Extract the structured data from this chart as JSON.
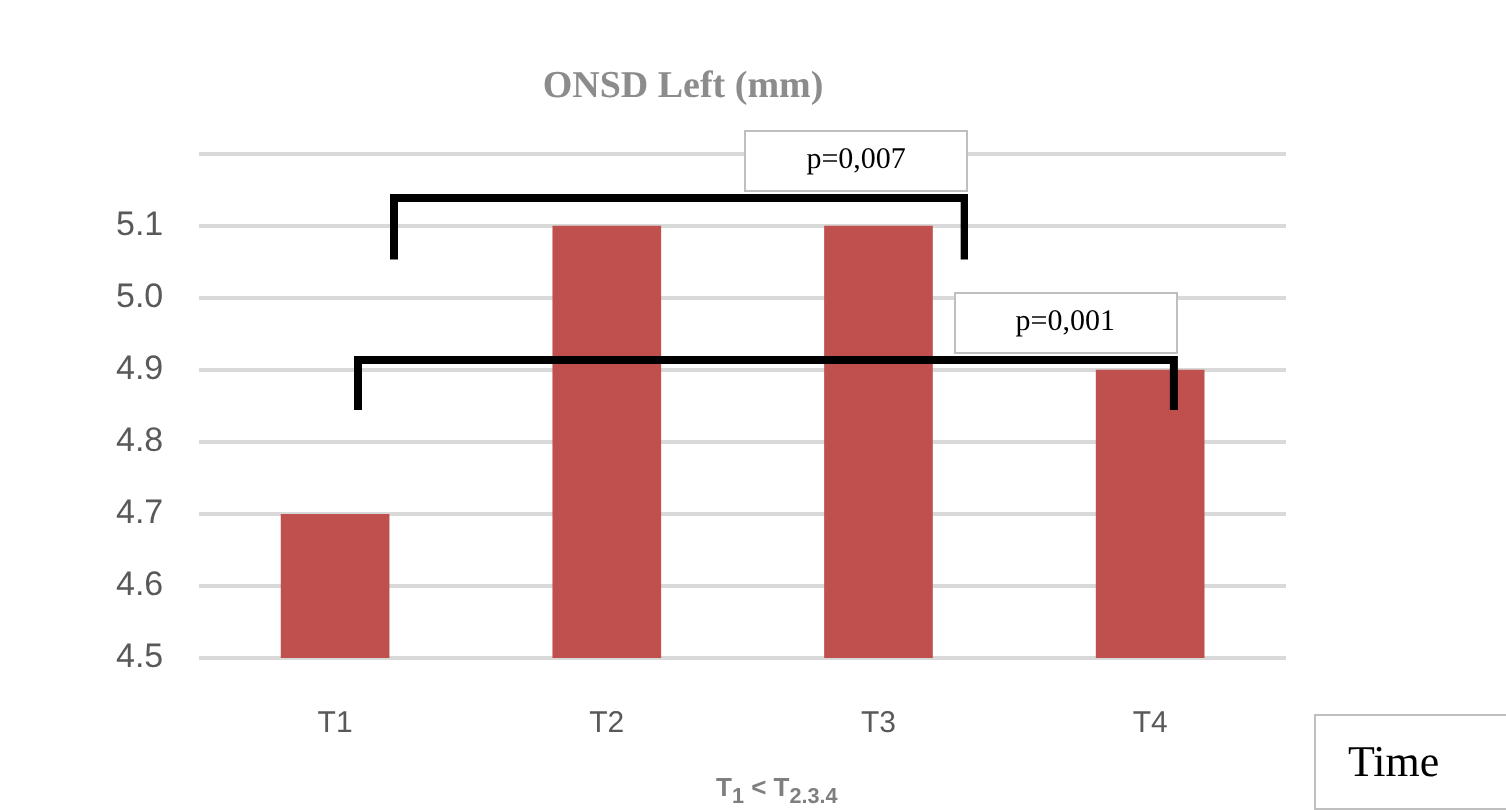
{
  "chart_data": {
    "type": "bar",
    "title": "ONSD Left (mm)",
    "xlabel": "Time",
    "categories": [
      "T1",
      "T2",
      "T3",
      "T4"
    ],
    "values": [
      4.7,
      5.1,
      5.1,
      4.9
    ],
    "color": "#c0504d",
    "ylim": [
      4.5,
      5.2
    ],
    "yticks": [
      4.5,
      4.6,
      4.7,
      4.8,
      4.9,
      "5.0",
      5.1,
      {
        "value": 5.2,
        "label": null
      }
    ],
    "grid": "y",
    "annotations": [
      "p=0,007",
      "p=0,001",
      "T$_{1}$ < T$_{2.3.4}$"
    ]
  }
}
